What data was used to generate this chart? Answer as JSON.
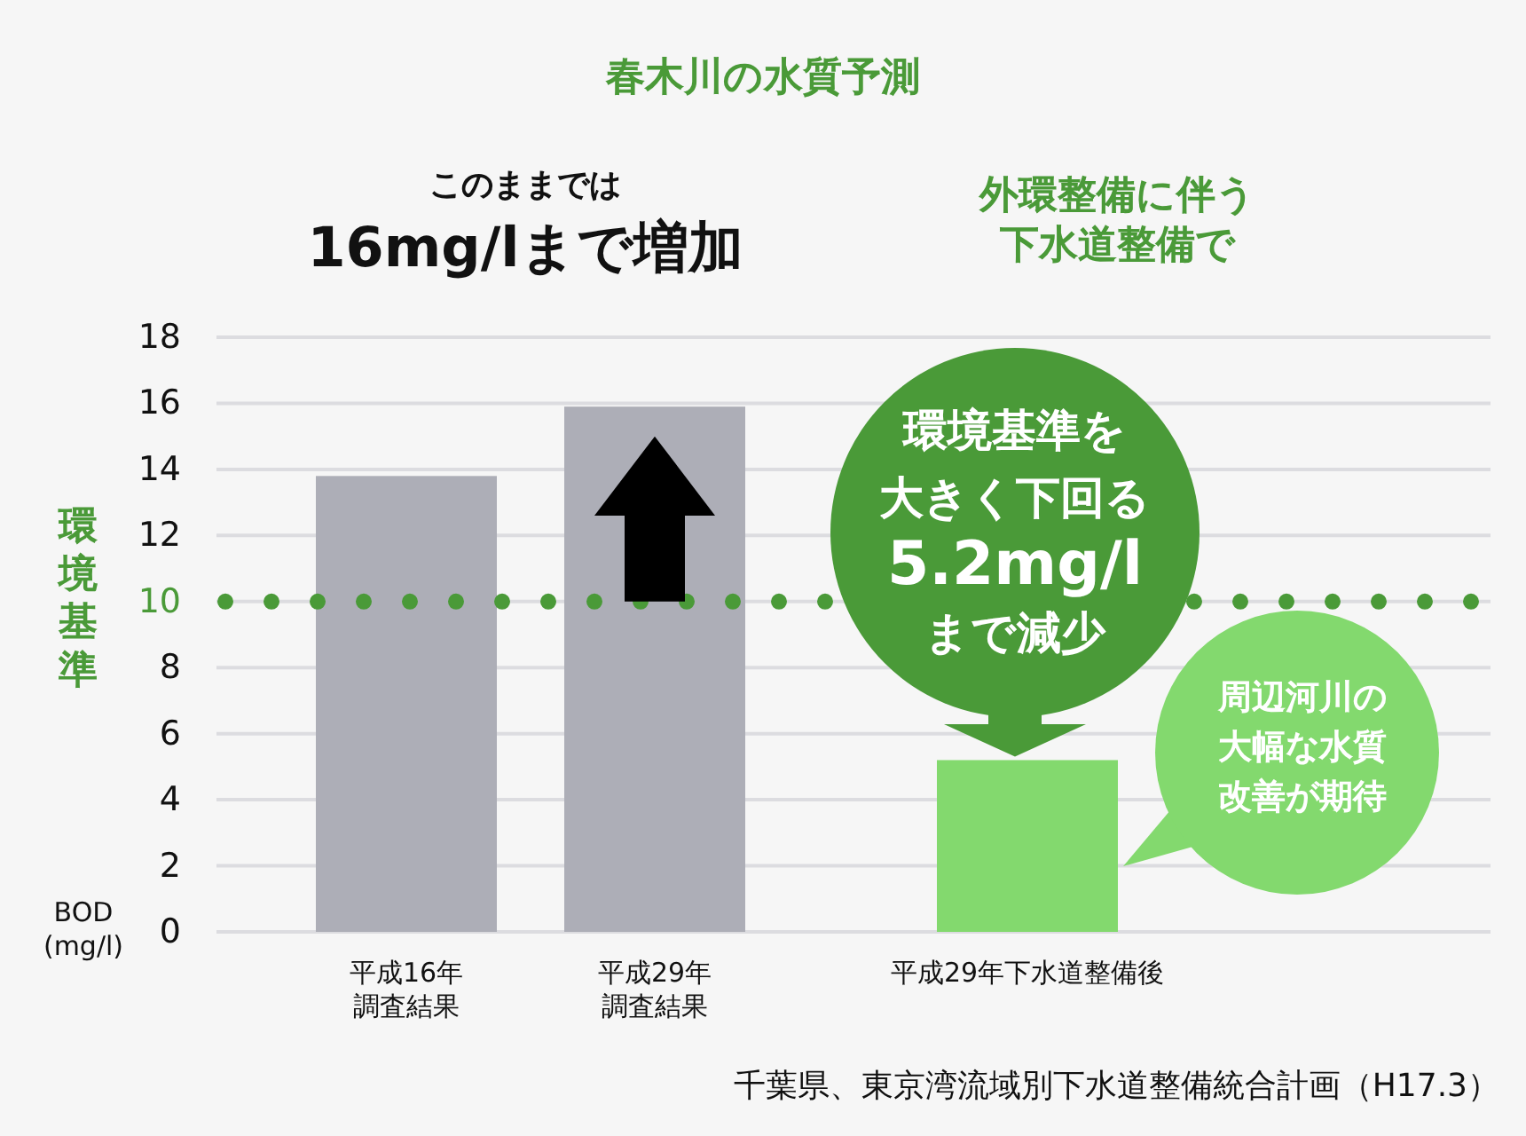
{
  "chart_data": {
    "type": "bar",
    "title": "春木川の水質予測",
    "ylabel": "BOD\n(mg/l)",
    "categories": [
      "平成16年調査結果",
      "平成29年調査結果",
      "平成29年下水道整備後"
    ],
    "values": [
      13.8,
      15.9,
      5.2
    ],
    "colors": [
      "#adaeb7",
      "#adaeb7",
      "#83d96e"
    ],
    "ylim": [
      0,
      18
    ],
    "yticks": [
      0,
      2,
      4,
      6,
      8,
      10,
      12,
      14,
      16,
      18
    ],
    "grid": "y",
    "ref_lines": [
      {
        "axis": "y",
        "value": 10,
        "label": "環境基準",
        "color": "#4a9a38",
        "line_style": "dotted"
      }
    ],
    "annotations": [
      "このままでは16mg/lまで増加",
      "外環整備に伴う下水道整備で",
      "環境基準を大きく下回る5.2mg/lまで減少",
      "周辺河川の大幅な水質改善が期待",
      "千葉県、東京湾流域別下水道整備統合計画（H17.3）"
    ]
  }
}
